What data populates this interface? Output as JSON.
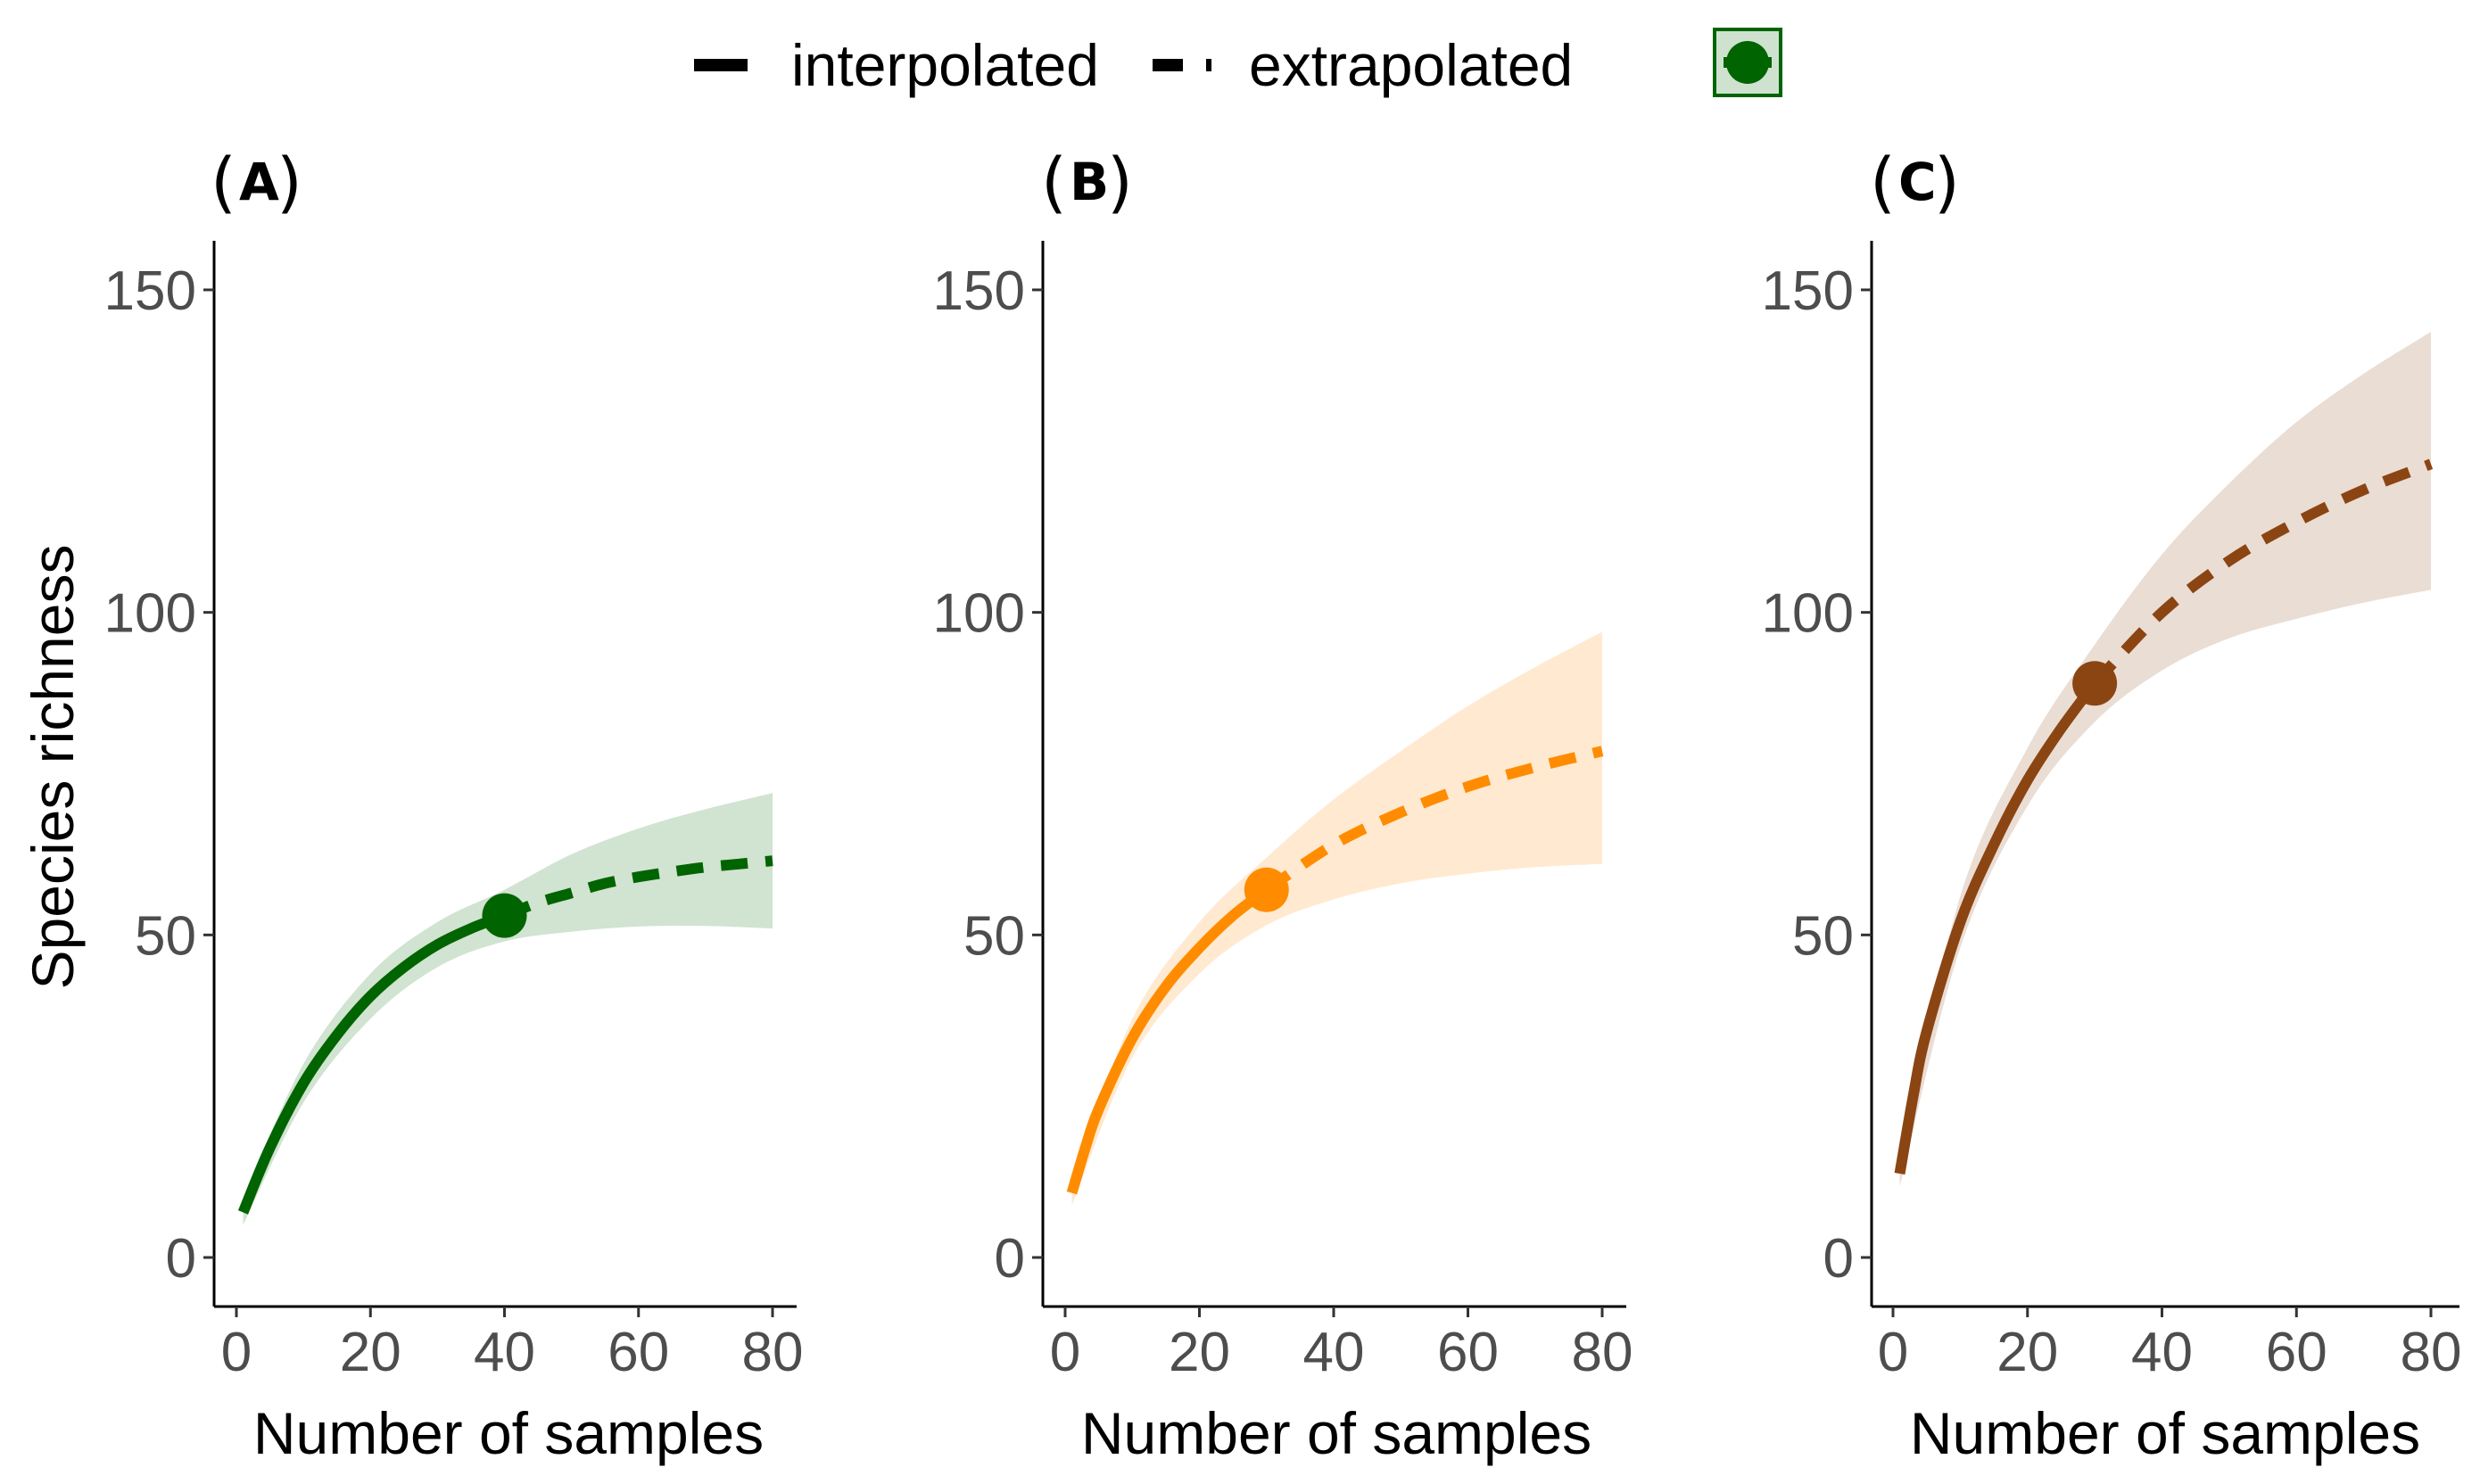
{
  "legend": {
    "interpolated_label": "interpolated",
    "extrapolated_label": "extrapolated"
  },
  "colors": {
    "A": "#006400",
    "B": "#FF8C00",
    "C": "#8B4513"
  },
  "chart_data": [
    {
      "type": "line",
      "panel": "A",
      "xlabel": "Number of samples",
      "ylabel": "Species richness",
      "xlim": [
        0,
        80
      ],
      "ylim": [
        0,
        150
      ],
      "xticks": [
        0,
        20,
        40,
        60,
        80
      ],
      "yticks": [
        0,
        50,
        100,
        150
      ],
      "grid": false,
      "observed": {
        "x": 40,
        "y": 53
      },
      "interpolated": {
        "x": [
          1,
          5,
          10,
          15,
          20,
          25,
          30,
          35,
          40
        ],
        "y": [
          7,
          17,
          27,
          34.5,
          40.5,
          45,
          48.5,
          51,
          53
        ]
      },
      "extrapolated": {
        "x": [
          40,
          45,
          50,
          55,
          60,
          65,
          70,
          75,
          80
        ],
        "y": [
          53,
          55,
          56.5,
          58,
          59,
          59.8,
          60.5,
          61,
          61.5
        ]
      },
      "ribbon": {
        "x": [
          1,
          10,
          20,
          30,
          40,
          50,
          60,
          70,
          80
        ],
        "lower": [
          5,
          24,
          37,
          45,
          49,
          50.5,
          51.3,
          51.4,
          51
        ],
        "upper": [
          9,
          30,
          44,
          52,
          57,
          62.5,
          66.5,
          69.5,
          72
        ]
      }
    },
    {
      "type": "line",
      "panel": "B",
      "xlabel": "Number of samples",
      "ylabel": "",
      "xlim": [
        0,
        80
      ],
      "ylim": [
        0,
        150
      ],
      "xticks": [
        0,
        20,
        40,
        60,
        80
      ],
      "yticks": [
        0,
        50,
        100,
        150
      ],
      "grid": false,
      "observed": {
        "x": 30,
        "y": 57
      },
      "interpolated": {
        "x": [
          1,
          3,
          5,
          10,
          15,
          20,
          25,
          30
        ],
        "y": [
          10,
          17,
          23,
          34,
          42,
          48,
          53,
          57
        ]
      },
      "extrapolated": {
        "x": [
          30,
          40,
          50,
          60,
          70,
          80
        ],
        "y": [
          57,
          64,
          69,
          73,
          76,
          78.5
        ]
      },
      "ribbon": {
        "x": [
          1,
          10,
          20,
          30,
          40,
          50,
          60,
          70,
          80
        ],
        "lower": [
          8,
          31,
          44,
          51.5,
          55.5,
          58,
          59.5,
          60.5,
          61
        ],
        "upper": [
          12,
          37,
          52,
          62,
          71,
          78.5,
          85.5,
          91.5,
          97
        ]
      }
    },
    {
      "type": "line",
      "panel": "C",
      "xlabel": "Number of samples",
      "ylabel": "",
      "xlim": [
        0,
        80
      ],
      "ylim": [
        0,
        150
      ],
      "xticks": [
        0,
        20,
        40,
        60,
        80
      ],
      "yticks": [
        0,
        50,
        100,
        150
      ],
      "grid": false,
      "observed": {
        "x": 30,
        "y": 89
      },
      "interpolated": {
        "x": [
          1,
          3,
          5,
          10,
          15,
          20,
          25,
          30
        ],
        "y": [
          13,
          25,
          35,
          52,
          64,
          74,
          82,
          89
        ]
      },
      "extrapolated": {
        "x": [
          30,
          40,
          50,
          60,
          70,
          80
        ],
        "y": [
          89,
          100,
          108,
          114,
          119,
          123
        ]
      },
      "ribbon": {
        "x": [
          1,
          10,
          20,
          30,
          40,
          50,
          60,
          70,
          80
        ],
        "lower": [
          11,
          48,
          70,
          83,
          91,
          96,
          99,
          101.5,
          103.5
        ],
        "upper": [
          15,
          56,
          79,
          95,
          109,
          120,
          129.5,
          137,
          143.5
        ]
      }
    }
  ]
}
